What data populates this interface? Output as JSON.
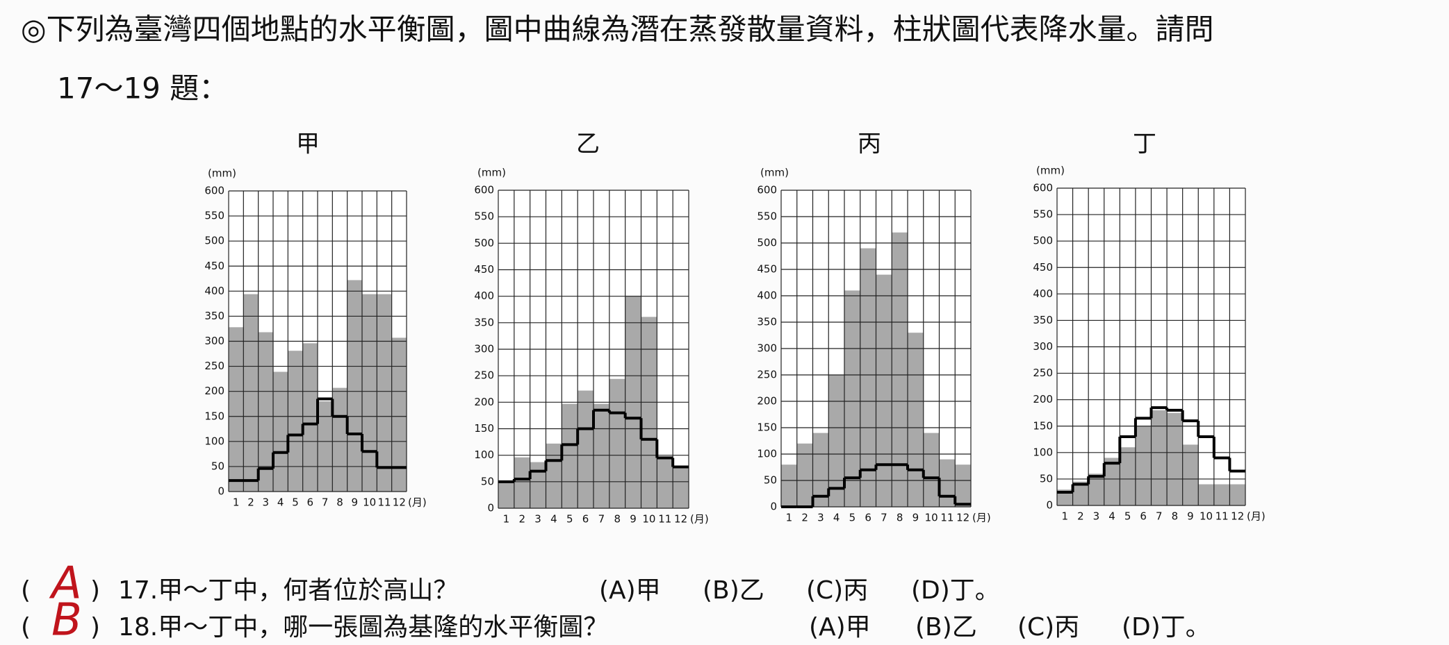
{
  "header": {
    "line1": "◎下列為臺灣四個地點的水平衡圖，圖中曲線為潛在蒸發散量資料，柱狀圖代表降水量。請問",
    "line2": "17～19 題："
  },
  "chart_data": [
    {
      "type": "bar-line",
      "title": "甲",
      "y_label": "(mm)",
      "x_label": "(月)",
      "categories": [
        "1",
        "2",
        "3",
        "4",
        "5",
        "6",
        "7",
        "8",
        "9",
        "10",
        "11",
        "12"
      ],
      "ylim": [
        0,
        600
      ],
      "yticks": [
        0,
        50,
        100,
        150,
        200,
        250,
        300,
        350,
        400,
        450,
        500,
        550,
        600
      ],
      "grid": true,
      "series": [
        {
          "type": "bar",
          "color": "#a9a9a9",
          "values": [
            328,
            394,
            318,
            239,
            281,
            296,
            180,
            207,
            422,
            394,
            394,
            307
          ]
        },
        {
          "type": "step",
          "color": "#000000",
          "values": [
            22,
            22,
            46,
            78,
            113,
            135,
            185,
            150,
            115,
            80,
            48,
            48
          ]
        }
      ]
    },
    {
      "type": "bar-line",
      "title": "乙",
      "y_label": "(mm)",
      "x_label": "(月)",
      "categories": [
        "1",
        "2",
        "3",
        "4",
        "5",
        "6",
        "7",
        "8",
        "9",
        "10",
        "11",
        "12"
      ],
      "ylim": [
        0,
        600
      ],
      "yticks": [
        0,
        50,
        100,
        150,
        200,
        250,
        300,
        350,
        400,
        450,
        500,
        550,
        600
      ],
      "grid": true,
      "series": [
        {
          "type": "bar",
          "color": "#a9a9a9",
          "values": [
            52,
            96,
            87,
            122,
            197,
            222,
            197,
            244,
            401,
            361,
            98,
            79
          ]
        },
        {
          "type": "step",
          "color": "#000000",
          "values": [
            50,
            55,
            70,
            90,
            120,
            150,
            185,
            180,
            170,
            130,
            95,
            78
          ]
        }
      ]
    },
    {
      "type": "bar-line",
      "title": "丙",
      "y_label": "(mm)",
      "x_label": "(月)",
      "categories": [
        "1",
        "2",
        "3",
        "4",
        "5",
        "6",
        "7",
        "8",
        "9",
        "10",
        "11",
        "12"
      ],
      "ylim": [
        0,
        600
      ],
      "yticks": [
        0,
        50,
        100,
        150,
        200,
        250,
        300,
        350,
        400,
        450,
        500,
        550,
        600
      ],
      "grid": true,
      "series": [
        {
          "type": "bar",
          "color": "#a9a9a9",
          "values": [
            80,
            120,
            140,
            250,
            410,
            490,
            440,
            520,
            330,
            140,
            90,
            80
          ]
        },
        {
          "type": "step",
          "color": "#000000",
          "values": [
            0,
            0,
            20,
            35,
            55,
            70,
            80,
            80,
            70,
            55,
            20,
            5
          ]
        }
      ]
    },
    {
      "type": "bar-line",
      "title": "丁",
      "y_label": "(mm)",
      "x_label": "(月)",
      "categories": [
        "1",
        "2",
        "3",
        "4",
        "5",
        "6",
        "7",
        "8",
        "9",
        "10",
        "11",
        "12"
      ],
      "ylim": [
        0,
        600
      ],
      "yticks": [
        0,
        50,
        100,
        150,
        200,
        250,
        300,
        350,
        400,
        450,
        500,
        550,
        600
      ],
      "grid": true,
      "series": [
        {
          "type": "bar",
          "color": "#a9a9a9",
          "values": [
            30,
            45,
            60,
            90,
            110,
            150,
            180,
            175,
            115,
            40,
            40,
            40
          ]
        },
        {
          "type": "step",
          "color": "#000000",
          "values": [
            25,
            40,
            55,
            80,
            130,
            165,
            185,
            180,
            160,
            130,
            90,
            65
          ]
        }
      ]
    }
  ],
  "questions": [
    {
      "open": "(",
      "answer": "A",
      "close": ")",
      "text": "17.甲～丁中，何者位於高山？",
      "options": [
        "(A)甲",
        "(B)乙",
        "(C)丙",
        "(D)丁。"
      ]
    },
    {
      "open": "(",
      "answer": "B",
      "close": ")",
      "text": "18.甲～丁中，哪一張圖為基隆的水平衡圖？",
      "options": [
        "(A)甲",
        "(B)乙",
        "(C)丙",
        "(D)丁。"
      ]
    }
  ]
}
